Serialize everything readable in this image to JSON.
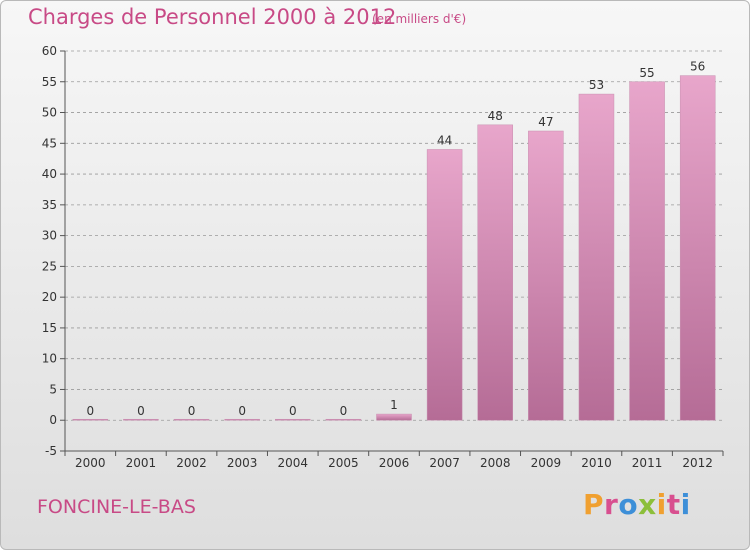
{
  "header": {
    "title": "Charges de Personnel 2000 à 2012",
    "subtitle": "(en milliers d'€)"
  },
  "footer": {
    "commune": "FONCINE-LE-BAS",
    "brand": "Proxiti",
    "brand_letters": [
      {
        "char": "P",
        "color": "#f0a030"
      },
      {
        "char": "r",
        "color": "#d84f8f"
      },
      {
        "char": "o",
        "color": "#3d8fd8"
      },
      {
        "char": "x",
        "color": "#8cbf3a"
      },
      {
        "char": "i",
        "color": "#f0a030"
      },
      {
        "char": "t",
        "color": "#d84f8f"
      },
      {
        "char": "i",
        "color": "#3d8fd8"
      }
    ]
  },
  "colors": {
    "accent": "#c84a86",
    "bar_top": "#e8a6cb",
    "bar_bottom": "#b56c96",
    "grid": "#9a9a9a",
    "axis": "#555555"
  },
  "chart_data": {
    "type": "bar",
    "title": "Charges de Personnel 2000 à 2012",
    "subtitle": "(en milliers d'€)",
    "categories": [
      "2000",
      "2001",
      "2002",
      "2003",
      "2004",
      "2005",
      "2006",
      "2007",
      "2008",
      "2009",
      "2010",
      "2011",
      "2012"
    ],
    "values": [
      0,
      0,
      0,
      0,
      0,
      0,
      1,
      44,
      48,
      47,
      53,
      55,
      56
    ],
    "data_labels": [
      "0",
      "0",
      "0",
      "0",
      "0",
      "0",
      "1",
      "44",
      "48",
      "47",
      "53",
      "55",
      "56"
    ],
    "ylim": [
      -5,
      60
    ],
    "yticks": [
      -5,
      0,
      5,
      10,
      15,
      20,
      25,
      30,
      35,
      40,
      45,
      50,
      55,
      60
    ],
    "xlabel": "",
    "ylabel": "",
    "grid": "horizontal dashed",
    "legend": "none"
  }
}
